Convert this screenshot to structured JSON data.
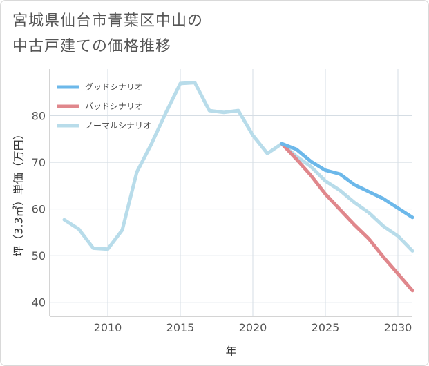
{
  "title_line1": "宮城県仙台市青葉区中山の",
  "title_line2": "中古戸建ての価格推移",
  "chart_data": {
    "type": "line",
    "xlabel": "年",
    "ylabel": "坪（3.3㎡）単価（万円）",
    "xlim": [
      2006,
      2031
    ],
    "ylim": [
      37,
      90
    ],
    "xticks": [
      2010,
      2015,
      2020,
      2025,
      2030
    ],
    "yticks": [
      40,
      50,
      60,
      70,
      80
    ],
    "grid": true,
    "legend_position": "top-left",
    "series": [
      {
        "name": "グッドシナリオ",
        "color": "#6cb8ea",
        "x": [
          2022,
          2023,
          2024,
          2025,
          2026,
          2027,
          2028,
          2029,
          2030,
          2031
        ],
        "y": [
          74.0,
          72.8,
          70.2,
          68.3,
          67.5,
          65.2,
          63.7,
          62.2,
          60.2,
          58.2
        ]
      },
      {
        "name": "バッドシナリオ",
        "color": "#e0878c",
        "x": [
          2022,
          2023,
          2024,
          2025,
          2026,
          2027,
          2028,
          2029,
          2030,
          2031
        ],
        "y": [
          74.0,
          70.7,
          67.2,
          63.2,
          59.9,
          56.6,
          53.6,
          49.7,
          46.1,
          42.5
        ]
      },
      {
        "name": "ノーマルシナリオ",
        "color": "#b8dcea",
        "x": [
          2007,
          2008,
          2009,
          2010,
          2011,
          2012,
          2013,
          2014,
          2015,
          2016,
          2017,
          2018,
          2019,
          2020,
          2021,
          2022,
          2023,
          2024,
          2025,
          2026,
          2027,
          2028,
          2029,
          2030,
          2031
        ],
        "y": [
          57.7,
          55.7,
          51.6,
          51.4,
          55.5,
          67.9,
          73.9,
          80.6,
          86.9,
          87.1,
          81.1,
          80.7,
          81.1,
          75.8,
          71.9,
          74.0,
          71.3,
          69.1,
          66.0,
          64.0,
          61.4,
          59.2,
          56.3,
          54.2,
          51.0
        ]
      }
    ]
  }
}
